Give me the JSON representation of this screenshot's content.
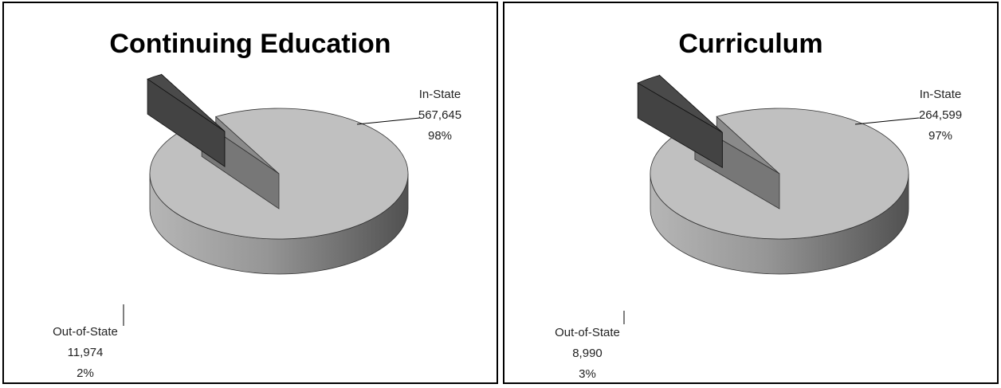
{
  "chart_data": [
    {
      "type": "pie",
      "title": "Continuing Education",
      "slices": [
        {
          "name": "In-State",
          "value": 567645,
          "value_label": "567,645",
          "percent_label": "98%",
          "color": "#c0c0c0"
        },
        {
          "name": "Out-of-State",
          "value": 11974,
          "value_label": "11,974",
          "percent_label": "2%",
          "color": "#4a4a4a"
        }
      ],
      "exploded_slice": "Out-of-State",
      "style": "3d"
    },
    {
      "type": "pie",
      "title": "Curriculum",
      "slices": [
        {
          "name": "In-State",
          "value": 264599,
          "value_label": "264,599",
          "percent_label": "97%",
          "color": "#c0c0c0"
        },
        {
          "name": "Out-of-State",
          "value": 8990,
          "value_label": "8,990",
          "percent_label": "3%",
          "color": "#4a4a4a"
        }
      ],
      "exploded_slice": "Out-of-State",
      "style": "3d"
    }
  ]
}
